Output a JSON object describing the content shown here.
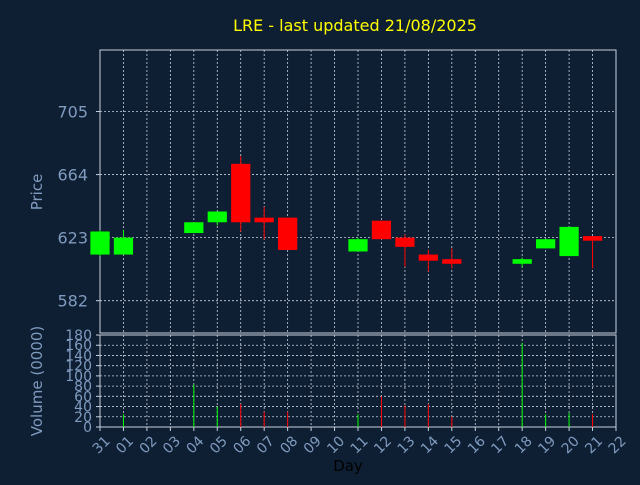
{
  "chart_data": {
    "type": "candlestick",
    "title": "LRE - last updated 21/08/2025",
    "price_panel": {
      "ylabel": "Price",
      "yticks": [
        582,
        623,
        664,
        705
      ],
      "ylim": [
        561,
        745
      ]
    },
    "volume_panel": {
      "ylabel": "Volume (0000)",
      "yticks": [
        0,
        20,
        40,
        60,
        80,
        100,
        120,
        140,
        160,
        180
      ],
      "ylim": [
        0,
        180
      ]
    },
    "xlabel": "Day",
    "xticks": [
      "31",
      "01",
      "02",
      "03",
      "04",
      "05",
      "06",
      "07",
      "08",
      "09",
      "10",
      "11",
      "12",
      "13",
      "14",
      "15",
      "16",
      "17",
      "18",
      "19",
      "20",
      "21",
      "22"
    ],
    "grid": true,
    "up_color": "#00ff00",
    "down_color": "#ff0000",
    "title_color": "#ffff00",
    "candles": [
      {
        "x": "31",
        "open": 612,
        "close": 627,
        "high": 628,
        "low": 611,
        "volume": 0
      },
      {
        "x": "01",
        "open": 612,
        "close": 623,
        "high": 628,
        "low": 612,
        "volume": 25
      },
      {
        "x": "04",
        "open": 626,
        "close": 633,
        "high": 633,
        "low": 626,
        "volume": 83
      },
      {
        "x": "05",
        "open": 633,
        "close": 640,
        "high": 640,
        "low": 631,
        "volume": 40
      },
      {
        "x": "06",
        "open": 671,
        "close": 633,
        "high": 676,
        "low": 627,
        "volume": 45
      },
      {
        "x": "07",
        "open": 636,
        "close": 633,
        "high": 643,
        "low": 622,
        "volume": 30
      },
      {
        "x": "08",
        "open": 636,
        "close": 615,
        "high": 636,
        "low": 615,
        "volume": 30
      },
      {
        "x": "11",
        "open": 614,
        "close": 622,
        "high": 623,
        "low": 614,
        "volume": 25
      },
      {
        "x": "12",
        "open": 634,
        "close": 622,
        "high": 634,
        "low": 622,
        "volume": 60
      },
      {
        "x": "13",
        "open": 623,
        "close": 617,
        "high": 625,
        "low": 604,
        "volume": 42
      },
      {
        "x": "14",
        "open": 612,
        "close": 608,
        "high": 615,
        "low": 601,
        "volume": 45
      },
      {
        "x": "15",
        "open": 609,
        "close": 606,
        "high": 616,
        "low": 603,
        "volume": 20
      },
      {
        "x": "18",
        "open": 606,
        "close": 609,
        "high": 610,
        "low": 604,
        "volume": 165
      },
      {
        "x": "19",
        "open": 616,
        "close": 622,
        "high": 622,
        "low": 616,
        "volume": 25
      },
      {
        "x": "20",
        "open": 611,
        "close": 630,
        "high": 630,
        "low": 611,
        "volume": 28
      },
      {
        "x": "21",
        "open": 624,
        "close": 621,
        "high": 624,
        "low": 603,
        "volume": 25
      }
    ]
  }
}
